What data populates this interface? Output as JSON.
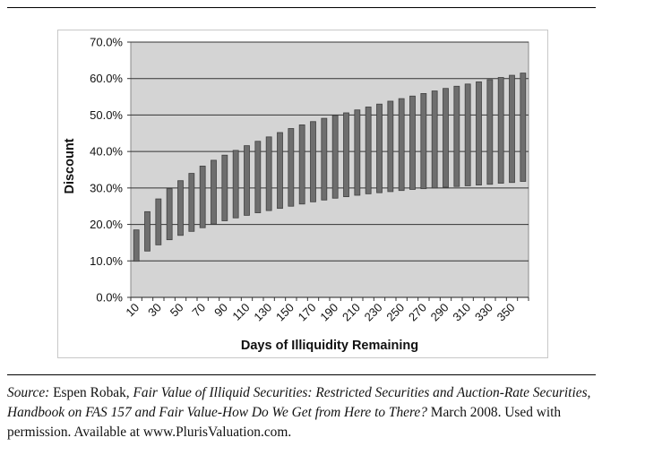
{
  "chart_data": {
    "type": "bar",
    "subtype": "floating-range",
    "xlabel": "Days of Illiquidity Remaining",
    "ylabel": "Discount",
    "ylim": [
      0,
      70
    ],
    "y_ticks": [
      "0.0%",
      "10.0%",
      "20.0%",
      "30.0%",
      "40.0%",
      "50.0%",
      "60.0%",
      "70.0%"
    ],
    "x_tick_labels": [
      "10",
      "30",
      "50",
      "70",
      "90",
      "110",
      "130",
      "150",
      "170",
      "190",
      "210",
      "230",
      "250",
      "270",
      "290",
      "310",
      "330",
      "350"
    ],
    "grid": true,
    "legend": "none",
    "colors": {
      "plot_bg": "#d4d4d4",
      "bar": "#6e6e6e",
      "bar_edge": "#404040",
      "grid": "#333333"
    },
    "categories": [
      10,
      20,
      30,
      40,
      50,
      60,
      70,
      80,
      90,
      100,
      110,
      120,
      130,
      140,
      150,
      160,
      170,
      180,
      190,
      200,
      210,
      220,
      230,
      240,
      250,
      260,
      270,
      280,
      290,
      300,
      310,
      320,
      330,
      340,
      350,
      360
    ],
    "series": [
      {
        "field": "low",
        "values": [
          9.9,
          12.7,
          14.4,
          15.8,
          17.0,
          18.1,
          19.1,
          20.1,
          21.0,
          21.8,
          22.5,
          23.2,
          23.8,
          24.4,
          25.0,
          25.6,
          26.2,
          26.7,
          27.2,
          27.6,
          28.0,
          28.4,
          28.7,
          29.0,
          29.3,
          29.6,
          29.8,
          30.0,
          30.2,
          30.4,
          30.6,
          30.8,
          31.0,
          31.3,
          31.5,
          31.8
        ]
      },
      {
        "field": "high",
        "values": [
          18.5,
          23.5,
          27.0,
          29.8,
          32.0,
          34.0,
          36.0,
          37.6,
          39.0,
          40.3,
          41.6,
          42.8,
          44.0,
          45.2,
          46.3,
          47.3,
          48.2,
          49.1,
          49.9,
          50.6,
          51.4,
          52.2,
          53.0,
          53.8,
          54.5,
          55.2,
          55.9,
          56.6,
          57.3,
          57.9,
          58.5,
          59.1,
          59.7,
          60.3,
          60.9,
          61.5
        ]
      }
    ]
  },
  "caption": {
    "source_label": "Source:",
    "author": " Espen Robak, ",
    "title_italic": "Fair Value of Illiquid Securities: Restricted Securities and Auction-Rate Securities, Handbook on FAS 157 and Fair Value-How Do We Get from Here to There?",
    "rest": " March 2008. Used with permission. Available at www.PlurisValuation.com."
  }
}
